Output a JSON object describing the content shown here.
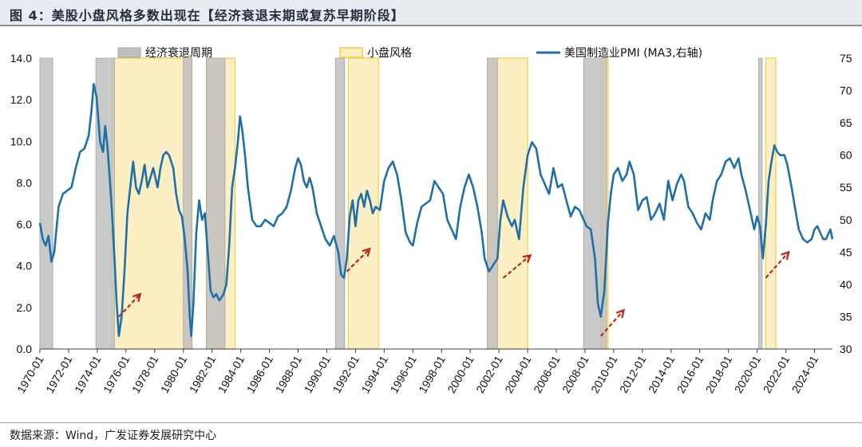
{
  "title": "图 4：美股小盘风格多数出现在【经济衰退末期或复苏早期阶段】",
  "source": "数据来源：Wind，广发证券发展研究中心",
  "colors": {
    "recession_fill": "#bfbfbf",
    "recession_stroke": "#a6a6a6",
    "smallcap_fill": "#fcefc4",
    "smallcap_stroke": "#f2cc3a",
    "pmi_line": "#1f6fa9",
    "arrow": "#c0221e",
    "axis": "#404040"
  },
  "chart_data": {
    "type": "line",
    "x_range": [
      1970.0,
      2025.25
    ],
    "left_axis": {
      "ylim": [
        0,
        14
      ],
      "ticks": [
        "0.0",
        "2.0",
        "4.0",
        "6.0",
        "8.0",
        "10.0",
        "12.0",
        "14.0"
      ]
    },
    "right_axis": {
      "ylim": [
        30,
        75
      ],
      "ticks": [
        "30",
        "35",
        "40",
        "45",
        "50",
        "55",
        "60",
        "65",
        "70",
        "75"
      ]
    },
    "x_ticks": [
      "1970-01",
      "1972-01",
      "1974-01",
      "1976-01",
      "1978-01",
      "1980-01",
      "1982-01",
      "1984-01",
      "1986-01",
      "1988-01",
      "1990-01",
      "1992-01",
      "1994-01",
      "1996-01",
      "1998-01",
      "2000-01",
      "2002-01",
      "2004-01",
      "2006-01",
      "2008-01",
      "2010-01",
      "2012-01",
      "2014-01",
      "2016-01",
      "2018-01",
      "2020-01",
      "2022-01",
      "2024-01"
    ],
    "legend": [
      {
        "key": "recession",
        "label": "经济衰退周期"
      },
      {
        "key": "smallcap",
        "label": "小盘风格"
      },
      {
        "key": "pmi",
        "label": "美国制造业PMI (MA3,右轴)"
      }
    ],
    "recessions": [
      [
        1970.0,
        1970.9
      ],
      [
        1973.9,
        1975.2
      ],
      [
        1980.0,
        1980.6
      ],
      [
        1981.6,
        1982.9
      ],
      [
        1990.6,
        1991.25
      ],
      [
        2001.2,
        2001.9
      ],
      [
        2007.9,
        2009.5
      ],
      [
        2020.1,
        2020.35
      ]
    ],
    "small_cap": [
      [
        1975.0,
        1980.6
      ],
      [
        1981.6,
        1983.6
      ],
      [
        1991.5,
        1993.6
      ],
      [
        2001.2,
        2004.0
      ],
      [
        2009.1,
        2009.6
      ],
      [
        2020.6,
        2021.3
      ]
    ],
    "pmi": {
      "name": "美国制造业PMI (MA3,右轴)",
      "points": [
        [
          1970.0,
          49.5
        ],
        [
          1970.2,
          47.0
        ],
        [
          1970.4,
          46.0
        ],
        [
          1970.6,
          47.5
        ],
        [
          1970.8,
          43.5
        ],
        [
          1971.0,
          45.0
        ],
        [
          1971.3,
          52.0
        ],
        [
          1971.6,
          54.0
        ],
        [
          1971.9,
          54.5
        ],
        [
          1972.2,
          55.0
        ],
        [
          1972.5,
          58.0
        ],
        [
          1972.8,
          60.5
        ],
        [
          1973.1,
          61.0
        ],
        [
          1973.4,
          63.0
        ],
        [
          1973.6,
          67.0
        ],
        [
          1973.75,
          71.0
        ],
        [
          1973.95,
          69.0
        ],
        [
          1974.2,
          62.0
        ],
        [
          1974.4,
          60.5
        ],
        [
          1974.55,
          64.5
        ],
        [
          1974.7,
          61.5
        ],
        [
          1974.85,
          57.0
        ],
        [
          1975.0,
          52.0
        ],
        [
          1975.2,
          44.0
        ],
        [
          1975.35,
          37.0
        ],
        [
          1975.5,
          32.0
        ],
        [
          1975.7,
          35.0
        ],
        [
          1975.9,
          42.0
        ],
        [
          1976.1,
          51.0
        ],
        [
          1976.3,
          55.0
        ],
        [
          1976.5,
          59.0
        ],
        [
          1976.7,
          55.0
        ],
        [
          1976.9,
          54.0
        ],
        [
          1977.1,
          56.0
        ],
        [
          1977.3,
          58.5
        ],
        [
          1977.5,
          55.0
        ],
        [
          1977.7,
          56.5
        ],
        [
          1977.9,
          58.0
        ],
        [
          1978.2,
          55.0
        ],
        [
          1978.4,
          58.0
        ],
        [
          1978.6,
          60.0
        ],
        [
          1978.8,
          60.5
        ],
        [
          1979.0,
          60.0
        ],
        [
          1979.3,
          58.0
        ],
        [
          1979.5,
          54.0
        ],
        [
          1979.7,
          51.5
        ],
        [
          1979.9,
          50.5
        ],
        [
          1980.1,
          47.0
        ],
        [
          1980.3,
          42.0
        ],
        [
          1980.45,
          35.0
        ],
        [
          1980.55,
          32.0
        ],
        [
          1980.7,
          37.0
        ],
        [
          1980.9,
          48.0
        ],
        [
          1981.1,
          53.0
        ],
        [
          1981.3,
          50.0
        ],
        [
          1981.5,
          51.0
        ],
        [
          1981.7,
          45.0
        ],
        [
          1981.9,
          39.0
        ],
        [
          1982.1,
          38.0
        ],
        [
          1982.3,
          38.5
        ],
        [
          1982.5,
          37.5
        ],
        [
          1982.8,
          38.5
        ],
        [
          1983.0,
          40.0
        ],
        [
          1983.2,
          46.0
        ],
        [
          1983.4,
          55.0
        ],
        [
          1983.6,
          58.0
        ],
        [
          1983.8,
          62.0
        ],
        [
          1983.95,
          66.0
        ],
        [
          1984.1,
          64.0
        ],
        [
          1984.3,
          60.0
        ],
        [
          1984.5,
          55.0
        ],
        [
          1984.8,
          50.0
        ],
        [
          1985.1,
          49.0
        ],
        [
          1985.4,
          49.0
        ],
        [
          1985.7,
          50.0
        ],
        [
          1986.0,
          49.5
        ],
        [
          1986.3,
          49.0
        ],
        [
          1986.6,
          50.5
        ],
        [
          1986.9,
          51.0
        ],
        [
          1987.2,
          52.0
        ],
        [
          1987.5,
          54.5
        ],
        [
          1987.8,
          58.0
        ],
        [
          1988.0,
          59.5
        ],
        [
          1988.2,
          58.5
        ],
        [
          1988.4,
          56.0
        ],
        [
          1988.6,
          55.0
        ],
        [
          1988.8,
          56.5
        ],
        [
          1989.0,
          55.0
        ],
        [
          1989.3,
          51.0
        ],
        [
          1989.6,
          49.0
        ],
        [
          1989.9,
          47.0
        ],
        [
          1990.2,
          46.0
        ],
        [
          1990.5,
          47.5
        ],
        [
          1990.8,
          45.0
        ],
        [
          1991.0,
          41.5
        ],
        [
          1991.2,
          41.0
        ],
        [
          1991.4,
          44.0
        ],
        [
          1991.6,
          50.5
        ],
        [
          1991.8,
          53.0
        ],
        [
          1992.0,
          49.0
        ],
        [
          1992.2,
          53.0
        ],
        [
          1992.4,
          54.0
        ],
        [
          1992.6,
          52.0
        ],
        [
          1992.8,
          54.5
        ],
        [
          1993.0,
          53.0
        ],
        [
          1993.2,
          51.0
        ],
        [
          1993.4,
          52.0
        ],
        [
          1993.7,
          51.5
        ],
        [
          1994.0,
          56.0
        ],
        [
          1994.3,
          58.0
        ],
        [
          1994.6,
          59.0
        ],
        [
          1994.9,
          57.0
        ],
        [
          1995.2,
          53.0
        ],
        [
          1995.5,
          48.0
        ],
        [
          1995.8,
          46.5
        ],
        [
          1996.0,
          46.0
        ],
        [
          1996.3,
          49.5
        ],
        [
          1996.6,
          52.0
        ],
        [
          1996.9,
          52.5
        ],
        [
          1997.2,
          53.0
        ],
        [
          1997.5,
          56.0
        ],
        [
          1997.8,
          55.0
        ],
        [
          1998.1,
          54.0
        ],
        [
          1998.4,
          50.0
        ],
        [
          1998.7,
          48.5
        ],
        [
          1999.0,
          47.0
        ],
        [
          1999.3,
          52.0
        ],
        [
          1999.6,
          55.0
        ],
        [
          1999.9,
          57.0
        ],
        [
          2000.2,
          55.0
        ],
        [
          2000.5,
          52.0
        ],
        [
          2000.8,
          48.0
        ],
        [
          2001.0,
          44.0
        ],
        [
          2001.3,
          42.0
        ],
        [
          2001.6,
          43.0
        ],
        [
          2001.9,
          44.0
        ],
        [
          2002.1,
          50.0
        ],
        [
          2002.3,
          53.0
        ],
        [
          2002.6,
          50.5
        ],
        [
          2002.9,
          49.0
        ],
        [
          2003.1,
          50.0
        ],
        [
          2003.4,
          47.0
        ],
        [
          2003.7,
          55.0
        ],
        [
          2004.0,
          60.0
        ],
        [
          2004.3,
          62.0
        ],
        [
          2004.6,
          61.0
        ],
        [
          2004.9,
          57.0
        ],
        [
          2005.2,
          55.5
        ],
        [
          2005.5,
          54.0
        ],
        [
          2005.8,
          58.0
        ],
        [
          2006.1,
          55.0
        ],
        [
          2006.4,
          55.5
        ],
        [
          2006.7,
          53.0
        ],
        [
          2007.0,
          50.5
        ],
        [
          2007.3,
          52.0
        ],
        [
          2007.6,
          51.5
        ],
        [
          2007.9,
          50.0
        ],
        [
          2008.1,
          49.0
        ],
        [
          2008.4,
          48.5
        ],
        [
          2008.7,
          44.0
        ],
        [
          2008.9,
          37.0
        ],
        [
          2009.1,
          35.0
        ],
        [
          2009.35,
          39.0
        ],
        [
          2009.6,
          49.5
        ],
        [
          2009.8,
          54.0
        ],
        [
          2010.0,
          57.0
        ],
        [
          2010.3,
          58.0
        ],
        [
          2010.6,
          56.0
        ],
        [
          2010.9,
          57.0
        ],
        [
          2011.1,
          59.0
        ],
        [
          2011.4,
          57.0
        ],
        [
          2011.7,
          51.5
        ],
        [
          2012.0,
          53.0
        ],
        [
          2012.3,
          53.5
        ],
        [
          2012.6,
          50.0
        ],
        [
          2012.9,
          51.0
        ],
        [
          2013.2,
          52.5
        ],
        [
          2013.5,
          50.0
        ],
        [
          2013.8,
          56.0
        ],
        [
          2014.1,
          53.0
        ],
        [
          2014.4,
          55.5
        ],
        [
          2014.7,
          57.0
        ],
        [
          2014.9,
          56.0
        ],
        [
          2015.2,
          52.0
        ],
        [
          2015.5,
          51.0
        ],
        [
          2015.8,
          49.5
        ],
        [
          2016.1,
          48.5
        ],
        [
          2016.4,
          51.0
        ],
        [
          2016.7,
          50.0
        ],
        [
          2016.9,
          53.0
        ],
        [
          2017.2,
          56.0
        ],
        [
          2017.5,
          57.0
        ],
        [
          2017.8,
          59.0
        ],
        [
          2018.1,
          59.5
        ],
        [
          2018.4,
          58.0
        ],
        [
          2018.7,
          59.5
        ],
        [
          2018.9,
          57.0
        ],
        [
          2019.2,
          54.5
        ],
        [
          2019.5,
          51.5
        ],
        [
          2019.8,
          48.5
        ],
        [
          2020.0,
          50.5
        ],
        [
          2020.2,
          49.0
        ],
        [
          2020.4,
          44.0
        ],
        [
          2020.6,
          49.0
        ],
        [
          2020.8,
          56.0
        ],
        [
          2021.0,
          59.0
        ],
        [
          2021.2,
          61.5
        ],
        [
          2021.4,
          60.5
        ],
        [
          2021.6,
          60.0
        ],
        [
          2021.9,
          60.0
        ],
        [
          2022.1,
          58.5
        ],
        [
          2022.4,
          55.0
        ],
        [
          2022.7,
          51.0
        ],
        [
          2022.9,
          48.5
        ],
        [
          2023.2,
          47.0
        ],
        [
          2023.5,
          46.5
        ],
        [
          2023.8,
          47.0
        ],
        [
          2024.0,
          48.5
        ],
        [
          2024.2,
          49.0
        ],
        [
          2024.4,
          48.0
        ],
        [
          2024.6,
          47.0
        ],
        [
          2024.8,
          47.0
        ],
        [
          2025.1,
          48.5
        ],
        [
          2025.25,
          47.0
        ]
      ]
    },
    "arrows": [
      {
        "from": [
          1975.5,
          35.0
        ],
        "to": [
          1977.0,
          38.5
        ]
      },
      {
        "from": [
          1991.4,
          42.0
        ],
        "to": [
          1993.0,
          45.5
        ]
      },
      {
        "from": [
          2002.3,
          41.0
        ],
        "to": [
          2004.2,
          44.5
        ]
      },
      {
        "from": [
          2009.1,
          32.0
        ],
        "to": [
          2010.7,
          36.0
        ]
      },
      {
        "from": [
          2020.6,
          41.0
        ],
        "to": [
          2022.2,
          45.0
        ]
      }
    ]
  }
}
